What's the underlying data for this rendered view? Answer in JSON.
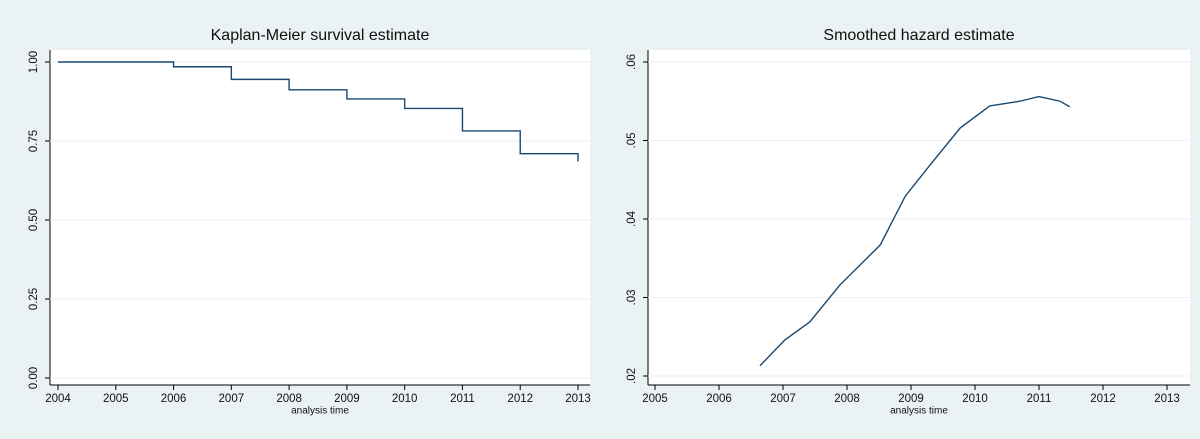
{
  "chart_data": [
    {
      "type": "step",
      "title": "Kaplan-Meier survival estimate",
      "x_label": "analysis time",
      "x": [
        2004,
        2006,
        2007,
        2008,
        2009,
        2010,
        2011,
        2012,
        2013
      ],
      "values": [
        1.0,
        0.985,
        0.945,
        0.912,
        0.883,
        0.853,
        0.782,
        0.71,
        0.685
      ],
      "color": "#1a476f",
      "xlim": [
        2004,
        2013
      ],
      "xticks": [
        2004,
        2005,
        2006,
        2007,
        2008,
        2009,
        2010,
        2011,
        2012,
        2013
      ],
      "ylim": [
        0,
        1
      ],
      "yticks": [
        {
          "value": 0,
          "label": "0.00"
        },
        {
          "value": 0.25,
          "label": "0.25"
        },
        {
          "value": 0.5,
          "label": "0.50"
        },
        {
          "value": 0.75,
          "label": "0.75"
        },
        {
          "value": 1,
          "label": "1.00"
        }
      ],
      "grid": true
    },
    {
      "type": "line",
      "title": "Smoothed hazard estimate",
      "x_label": "analysis time",
      "x": [
        2006.64,
        2007.03,
        2007.42,
        2007.89,
        2008.36,
        2008.52,
        2008.91,
        2009.3,
        2009.77,
        2010.23,
        2010.7,
        2011.0,
        2011.33,
        2011.48
      ],
      "values": [
        0.0213,
        0.0246,
        0.0269,
        0.0316,
        0.0354,
        0.0367,
        0.0429,
        0.0469,
        0.0516,
        0.0544,
        0.055,
        0.0556,
        0.055,
        0.0543
      ],
      "color": "#1a476f",
      "xlim": [
        2005,
        2013
      ],
      "xticks": [
        2005,
        2006,
        2007,
        2008,
        2009,
        2010,
        2011,
        2012,
        2013
      ],
      "ylim": [
        0.02,
        0.06
      ],
      "yticks": [
        {
          "value": 0.02,
          "label": ".02"
        },
        {
          "value": 0.03,
          "label": ".03"
        },
        {
          "value": 0.04,
          "label": ".04"
        },
        {
          "value": 0.05,
          "label": ".05"
        },
        {
          "value": 0.06,
          "label": ".06"
        }
      ],
      "grid": true
    }
  ]
}
